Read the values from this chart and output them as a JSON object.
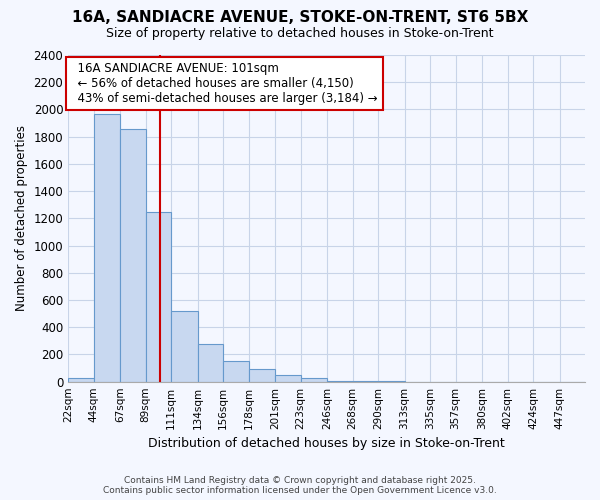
{
  "title": "16A, SANDIACRE AVENUE, STOKE-ON-TRENT, ST6 5BX",
  "subtitle": "Size of property relative to detached houses in Stoke-on-Trent",
  "xlabel": "Distribution of detached houses by size in Stoke-on-Trent",
  "ylabel": "Number of detached properties",
  "footer_line1": "Contains HM Land Registry data © Crown copyright and database right 2025.",
  "footer_line2": "Contains public sector information licensed under the Open Government Licence v3.0.",
  "annotation_line1": "16A SANDIACRE AVENUE: 101sqm",
  "annotation_line2": "← 56% of detached houses are smaller (4,150)",
  "annotation_line3": "43% of semi-detached houses are larger (3,184) →",
  "property_size": 101,
  "bar_color": "#c8d8f0",
  "bar_edge_color": "#6699cc",
  "vline_color": "#cc0000",
  "annotation_box_color": "#ffffff",
  "annotation_box_edge": "#cc0000",
  "bg_color": "#f4f7ff",
  "grid_color": "#c8d4e8",
  "bins": [
    22,
    44,
    67,
    89,
    111,
    134,
    156,
    178,
    201,
    223,
    246,
    268,
    290,
    313,
    335,
    357,
    380,
    402,
    424,
    447,
    469
  ],
  "counts": [
    30,
    1970,
    1860,
    1250,
    520,
    280,
    150,
    90,
    50,
    30,
    5,
    2,
    2,
    1,
    1,
    0,
    0,
    0,
    0,
    0
  ],
  "ylim": [
    0,
    2400
  ],
  "yticks": [
    0,
    200,
    400,
    600,
    800,
    1000,
    1200,
    1400,
    1600,
    1800,
    2000,
    2200,
    2400
  ]
}
